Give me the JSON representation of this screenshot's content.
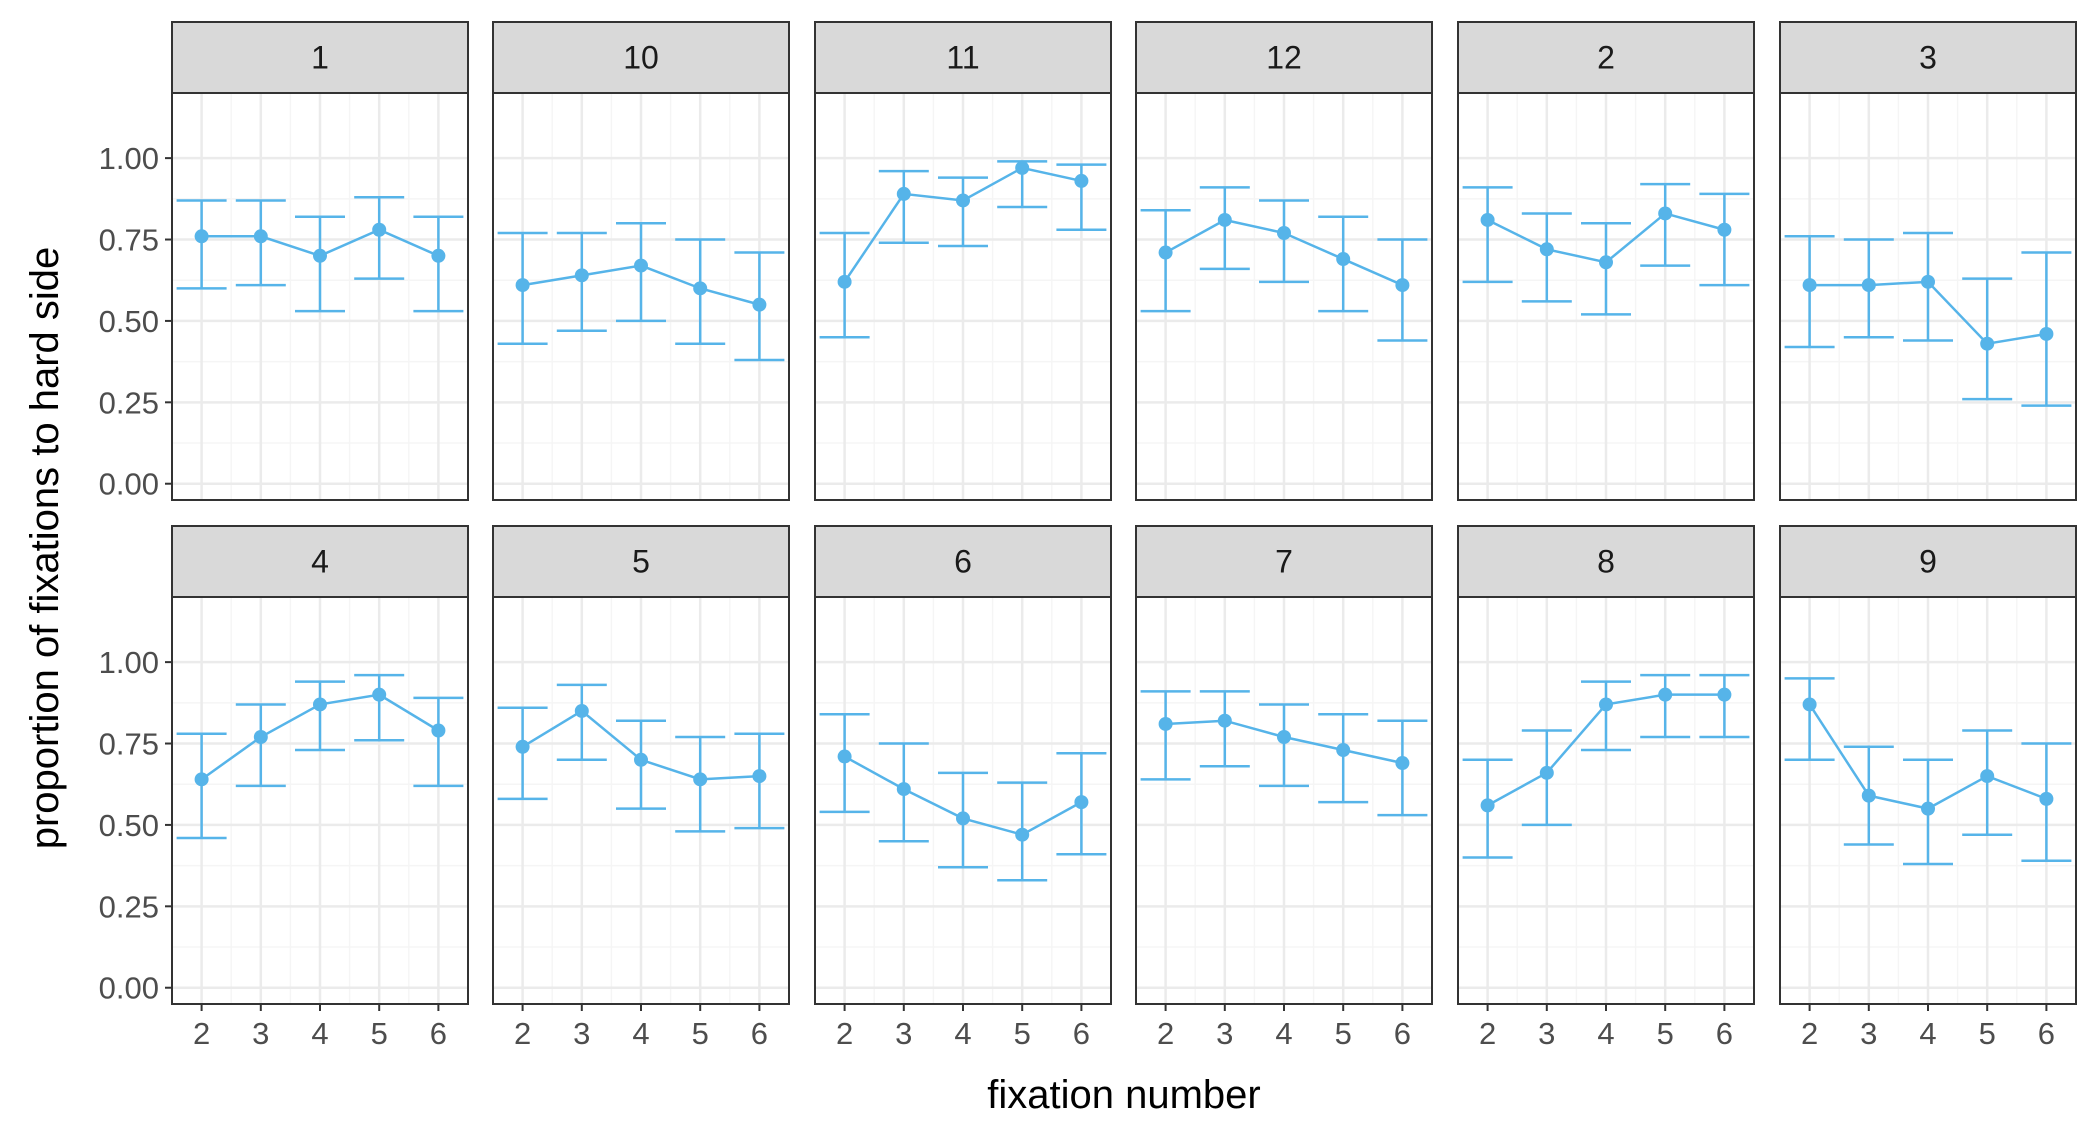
{
  "chart_data": {
    "type": "line",
    "layout": "facet_wrap 2x6, error bars",
    "xlabel": "fixation number",
    "ylabel": "proportion of fixations to hard side",
    "x": [
      2,
      3,
      4,
      5,
      6
    ],
    "xlim": [
      1.5,
      6.5
    ],
    "ylim": [
      -0.05,
      1.2
    ],
    "yticks": [
      0.0,
      0.25,
      0.5,
      0.75,
      1.0
    ],
    "ytick_labels": [
      "0.00",
      "0.25",
      "0.50",
      "0.75",
      "1.00"
    ],
    "xtick_labels": [
      "2",
      "3",
      "4",
      "5",
      "6"
    ],
    "grid": true,
    "colors": {
      "series": "#56B4E9",
      "strip_fill": "#D9D9D9",
      "panel_border": "#333333",
      "grid_major": "#EBEBEB",
      "grid_minor": "#F5F5F5"
    },
    "facets": [
      {
        "label": "1",
        "y": [
          0.76,
          0.76,
          0.7,
          0.78,
          0.7
        ],
        "ymin": [
          0.6,
          0.61,
          0.53,
          0.63,
          0.53
        ],
        "ymax": [
          0.87,
          0.87,
          0.82,
          0.88,
          0.82
        ]
      },
      {
        "label": "10",
        "y": [
          0.61,
          0.64,
          0.67,
          0.6,
          0.55
        ],
        "ymin": [
          0.43,
          0.47,
          0.5,
          0.43,
          0.38
        ],
        "ymax": [
          0.77,
          0.77,
          0.8,
          0.75,
          0.71
        ]
      },
      {
        "label": "11",
        "y": [
          0.62,
          0.89,
          0.87,
          0.97,
          0.93
        ],
        "ymin": [
          0.45,
          0.74,
          0.73,
          0.85,
          0.78
        ],
        "ymax": [
          0.77,
          0.96,
          0.94,
          0.99,
          0.98
        ]
      },
      {
        "label": "12",
        "y": [
          0.71,
          0.81,
          0.77,
          0.69,
          0.61
        ],
        "ymin": [
          0.53,
          0.66,
          0.62,
          0.53,
          0.44
        ],
        "ymax": [
          0.84,
          0.91,
          0.87,
          0.82,
          0.75
        ]
      },
      {
        "label": "2",
        "y": [
          0.81,
          0.72,
          0.68,
          0.83,
          0.78
        ],
        "ymin": [
          0.62,
          0.56,
          0.52,
          0.67,
          0.61
        ],
        "ymax": [
          0.91,
          0.83,
          0.8,
          0.92,
          0.89
        ]
      },
      {
        "label": "3",
        "y": [
          0.61,
          0.61,
          0.62,
          0.43,
          0.46
        ],
        "ymin": [
          0.42,
          0.45,
          0.44,
          0.26,
          0.24
        ],
        "ymax": [
          0.76,
          0.75,
          0.77,
          0.63,
          0.71
        ]
      },
      {
        "label": "4",
        "y": [
          0.64,
          0.77,
          0.87,
          0.9,
          0.79
        ],
        "ymin": [
          0.46,
          0.62,
          0.73,
          0.76,
          0.62
        ],
        "ymax": [
          0.78,
          0.87,
          0.94,
          0.96,
          0.89
        ]
      },
      {
        "label": "5",
        "y": [
          0.74,
          0.85,
          0.7,
          0.64,
          0.65
        ],
        "ymin": [
          0.58,
          0.7,
          0.55,
          0.48,
          0.49
        ],
        "ymax": [
          0.86,
          0.93,
          0.82,
          0.77,
          0.78
        ]
      },
      {
        "label": "6",
        "y": [
          0.71,
          0.61,
          0.52,
          0.47,
          0.57
        ],
        "ymin": [
          0.54,
          0.45,
          0.37,
          0.33,
          0.41
        ],
        "ymax": [
          0.84,
          0.75,
          0.66,
          0.63,
          0.72
        ]
      },
      {
        "label": "7",
        "y": [
          0.81,
          0.82,
          0.77,
          0.73,
          0.69
        ],
        "ymin": [
          0.64,
          0.68,
          0.62,
          0.57,
          0.53
        ],
        "ymax": [
          0.91,
          0.91,
          0.87,
          0.84,
          0.82
        ]
      },
      {
        "label": "8",
        "y": [
          0.56,
          0.66,
          0.87,
          0.9,
          0.9
        ],
        "ymin": [
          0.4,
          0.5,
          0.73,
          0.77,
          0.77
        ],
        "ymax": [
          0.7,
          0.79,
          0.94,
          0.96,
          0.96
        ]
      },
      {
        "label": "9",
        "y": [
          0.87,
          0.59,
          0.55,
          0.65,
          0.58
        ],
        "ymin": [
          0.7,
          0.44,
          0.38,
          0.47,
          0.39
        ],
        "ymax": [
          0.95,
          0.74,
          0.7,
          0.79,
          0.75
        ]
      }
    ]
  }
}
